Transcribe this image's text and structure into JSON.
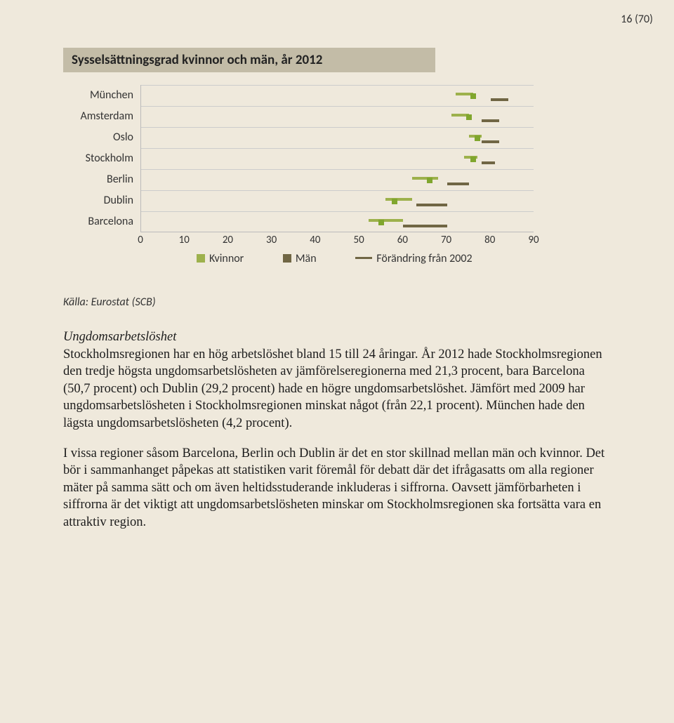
{
  "pageNumber": "16 (70)",
  "chart": {
    "title": "Sysselsättningsgrad kvinnor och män, år 2012",
    "categories": [
      "München",
      "Amsterdam",
      "Oslo",
      "Stockholm",
      "Berlin",
      "Dublin",
      "Barcelona"
    ],
    "xmin": 0,
    "xmax": 90,
    "xticks": [
      0,
      10,
      20,
      30,
      40,
      50,
      60,
      70,
      80,
      90
    ],
    "rows": [
      {
        "kvinnor_start": 72,
        "kvinnor_end": 76,
        "man_start": 80,
        "man_end": 84,
        "marker": 76
      },
      {
        "kvinnor_start": 71,
        "kvinnor_end": 75,
        "man_start": 78,
        "man_end": 82,
        "marker": 75
      },
      {
        "kvinnor_start": 75,
        "kvinnor_end": 78,
        "man_start": 78,
        "man_end": 82,
        "marker": 77
      },
      {
        "kvinnor_start": 74,
        "kvinnor_end": 77,
        "man_start": 78,
        "man_end": 81,
        "marker": 76
      },
      {
        "kvinnor_start": 62,
        "kvinnor_end": 68,
        "man_start": 70,
        "man_end": 75,
        "marker": 66
      },
      {
        "kvinnor_start": 56,
        "kvinnor_end": 62,
        "man_start": 63,
        "man_end": 70,
        "marker": 58
      },
      {
        "kvinnor_start": 52,
        "kvinnor_end": 60,
        "man_start": 60,
        "man_end": 70,
        "marker": 55
      }
    ],
    "legend": {
      "kvinnor": "Kvinnor",
      "man": "Män",
      "change": "Förändring från 2002"
    },
    "colors": {
      "kvinnor": "#9db14c",
      "man": "#706644",
      "marker": "#80a62e"
    },
    "source": "Källa: Eurostat (SCB)"
  },
  "para": {
    "heading": "Ungdomsarbetslöshet",
    "p1": "Stockholmsregionen har en hög arbetslöshet bland 15 till 24 åringar. År 2012 hade Stockholmsregionen den tredje högsta ungdomsarbetslösheten av jämförelseregionerna med 21,3 procent, bara Barcelona (50,7 procent) och Dublin (29,2 procent) hade en högre ungdomsarbetslöshet. Jämfört med 2009 har ungdomsarbetslösheten i Stockholmsregionen minskat något (från 22,1 procent). München hade den lägsta ungdomsarbetslösheten (4,2 procent).",
    "p2": "I vissa regioner såsom Barcelona, Berlin och Dublin är det en stor skillnad mellan män och kvinnor. Det bör i sammanhanget påpekas att statistiken varit föremål för debatt där det ifrågasatts om alla regioner mäter på samma sätt och om även heltidsstuderande inkluderas i siffrorna. Oavsett jämförbarheten i siffrorna är det viktigt att ungdomsarbetslösheten minskar om Stockholmsregionen ska fortsätta vara en attraktiv region."
  }
}
